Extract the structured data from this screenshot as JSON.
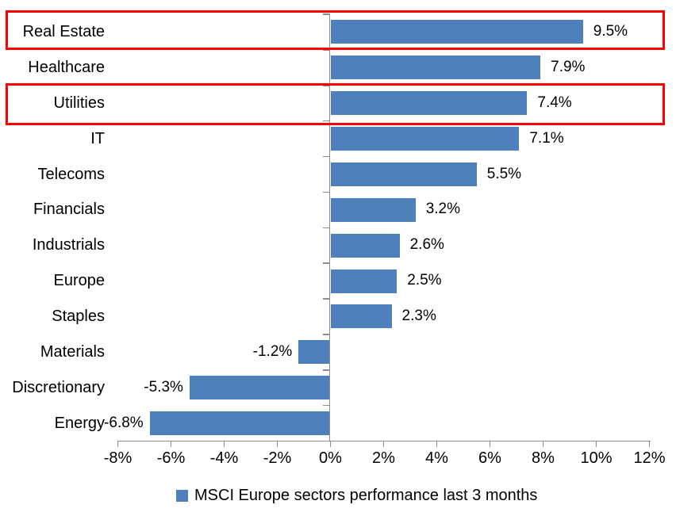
{
  "chart_data": {
    "type": "bar",
    "orientation": "horizontal",
    "title": "",
    "legend": "MSCI Europe sectors performance last 3 months",
    "legend_position": "bottom",
    "categories": [
      "Real Estate",
      "Healthcare",
      "Utilities",
      "IT",
      "Telecoms",
      "Financials",
      "Industrials",
      "Europe",
      "Staples",
      "Materials",
      "Discretionary",
      "Energy"
    ],
    "values": [
      9.5,
      7.9,
      7.4,
      7.1,
      5.5,
      3.2,
      2.6,
      2.5,
      2.3,
      -1.2,
      -5.3,
      -6.8
    ],
    "data_labels": [
      "9.5%",
      "7.9%",
      "7.4%",
      "7.1%",
      "5.5%",
      "3.2%",
      "2.6%",
      "2.5%",
      "2.3%",
      "-1.2%",
      "-5.3%",
      "-6.8%"
    ],
    "x_tick_labels": [
      "-8%",
      "-6%",
      "-4%",
      "-2%",
      "0%",
      "2%",
      "4%",
      "6%",
      "8%",
      "10%",
      "12%"
    ],
    "x_tick_values": [
      -8,
      -6,
      -4,
      -2,
      0,
      2,
      4,
      6,
      8,
      10,
      12
    ],
    "xlim": [
      -8,
      12
    ],
    "grid": false,
    "highlighted_categories": [
      "Real Estate",
      "Utilities"
    ],
    "colors": {
      "bar": "#4E81BC",
      "highlight_border": "#FE0000",
      "axis": "#8C8C8C",
      "text": "#000000",
      "background": "#FFFFFF"
    }
  }
}
